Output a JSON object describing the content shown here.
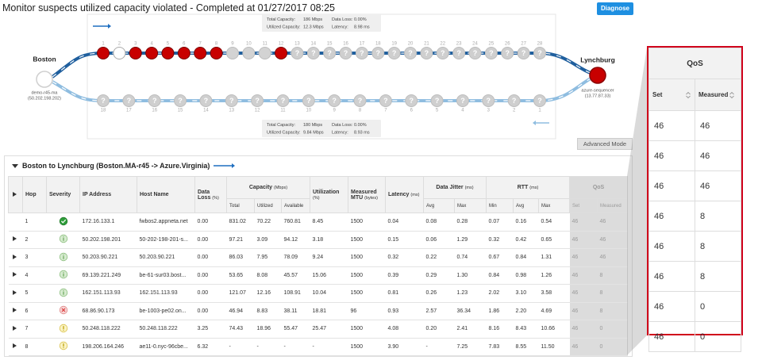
{
  "header": {
    "title": "Monitor suspects utilized capacity violated - Completed at 01/27/2017 08:25",
    "diagnose": "Diagnose"
  },
  "path": {
    "top_stats": [
      [
        "Total Capacity:",
        "186 Mbps"
      ],
      [
        "Data Loss:",
        "0.00%"
      ],
      [
        "Utilized Capacity:",
        "12.3 Mbps"
      ],
      [
        "Latency:",
        "8.98 ms"
      ]
    ],
    "bottom_stats": [
      [
        "Total Capacity:",
        "180 Mbps"
      ],
      [
        "Data Loss:",
        "0.00%"
      ],
      [
        "Utilized Capacity:",
        "9.84 Mbps"
      ],
      [
        "Latency:",
        "8.93 ms"
      ]
    ],
    "source": {
      "name": "Boston",
      "host": "demo-r45-ma",
      "ip": "(50.202.198.202)"
    },
    "target": {
      "name": "Lynchburg",
      "host": "azure-sequencer",
      "ip": "(13.77.87.33)"
    },
    "unknown_symbol": "?",
    "outbound_hops": [
      {
        "label": "1",
        "state": "violation"
      },
      {
        "label": "2",
        "state": "clear"
      },
      {
        "label": "3",
        "state": "violation"
      },
      {
        "label": "4",
        "state": "violation"
      },
      {
        "label": "5",
        "state": "violation"
      },
      {
        "label": "6",
        "state": "violation"
      },
      {
        "label": "7",
        "state": "violation"
      },
      {
        "label": "8",
        "state": "violation"
      },
      {
        "label": "9",
        "state": "traced"
      },
      {
        "label": "10",
        "state": "traced"
      },
      {
        "label": "11",
        "state": "traced"
      },
      {
        "label": "12",
        "state": "violation"
      },
      {
        "label": "13",
        "state": "unknown"
      },
      {
        "label": "14",
        "state": "unknown"
      },
      {
        "label": "15",
        "state": "unknown"
      },
      {
        "label": "16",
        "state": "unknown"
      },
      {
        "label": "17",
        "state": "unknown"
      },
      {
        "label": "18",
        "state": "unknown"
      },
      {
        "label": "19",
        "state": "unknown"
      },
      {
        "label": "20",
        "state": "unknown"
      },
      {
        "label": "21",
        "state": "unknown"
      },
      {
        "label": "22",
        "state": "unknown"
      },
      {
        "label": "23",
        "state": "unknown"
      },
      {
        "label": "24",
        "state": "unknown"
      },
      {
        "label": "25",
        "state": "unknown"
      },
      {
        "label": "26",
        "state": "unknown"
      },
      {
        "label": "27",
        "state": "unknown"
      },
      {
        "label": "28",
        "state": "unknown"
      }
    ],
    "inbound_hops": [
      {
        "label": "18",
        "state": "unknown"
      },
      {
        "label": "17",
        "state": "unknown"
      },
      {
        "label": "16",
        "state": "unknown"
      },
      {
        "label": "15",
        "state": "unknown"
      },
      {
        "label": "14",
        "state": "unknown"
      },
      {
        "label": "13",
        "state": "unknown"
      },
      {
        "label": "12",
        "state": "unknown"
      },
      {
        "label": "11",
        "state": "unknown"
      },
      {
        "label": "10",
        "state": "unknown"
      },
      {
        "label": "9",
        "state": "unknown"
      },
      {
        "label": "8",
        "state": "unknown"
      },
      {
        "label": "7",
        "state": "unknown"
      },
      {
        "label": "6",
        "state": "unknown"
      },
      {
        "label": "5",
        "state": "unknown"
      },
      {
        "label": "4",
        "state": "unknown"
      },
      {
        "label": "3",
        "state": "unknown"
      },
      {
        "label": "2",
        "state": "unknown"
      },
      {
        "label": "1",
        "state": "unknown"
      }
    ]
  },
  "advanced_mode": "Advanced Mode",
  "section": {
    "title": "Boston to Lynchburg (Boston.MA-r45 -> Azure.Virginia)"
  },
  "table": {
    "columns": [
      {
        "label": "Hop"
      },
      {
        "label": "Severity"
      },
      {
        "label": "IP Address"
      },
      {
        "label": "Host Name"
      },
      {
        "label": "Data Loss",
        "unit": "(%)"
      },
      {
        "label": "Capacity",
        "unit": "(Mbps)",
        "sub": [
          "Total",
          "Utilized",
          "Available"
        ]
      },
      {
        "label": "Utilization",
        "unit": "(%)"
      },
      {
        "label": "Measured MTU",
        "unit": "(bytes)"
      },
      {
        "label": "Latency",
        "unit": "(ms)"
      },
      {
        "label": "Data Jitter",
        "unit": "(ms)",
        "sub": [
          "Avg",
          "Max"
        ]
      },
      {
        "label": "RTT",
        "unit": "(ms)",
        "sub": [
          "Min",
          "Avg",
          "Max"
        ]
      },
      {
        "label": "QoS",
        "sub": [
          "Set",
          "Measured"
        ]
      }
    ],
    "rows": [
      {
        "expandable": false,
        "severity": "ok",
        "cells": [
          "1",
          "172.16.133.1",
          "fwbos2.appneta.net",
          "0.00",
          "831.02",
          "70.22",
          "760.81",
          "8.45",
          "1500",
          "0.04",
          "0.08",
          "0.28",
          "0.07",
          "0.16",
          "0.54",
          "46",
          "46"
        ]
      },
      {
        "expandable": true,
        "severity": "info",
        "cells": [
          "2",
          "50.202.198.201",
          "50-202-198-201-s...",
          "0.00",
          "97.21",
          "3.09",
          "94.12",
          "3.18",
          "1500",
          "0.15",
          "0.06",
          "1.29",
          "0.32",
          "0.42",
          "0.65",
          "46",
          "46"
        ]
      },
      {
        "expandable": true,
        "severity": "info",
        "cells": [
          "3",
          "50.203.90.221",
          "50.203.90.221",
          "0.00",
          "86.03",
          "7.95",
          "78.09",
          "9.24",
          "1500",
          "0.32",
          "0.22",
          "0.74",
          "0.67",
          "0.84",
          "1.31",
          "46",
          "46"
        ]
      },
      {
        "expandable": true,
        "severity": "info",
        "cells": [
          "4",
          "69.139.221.249",
          "be-61-sur03.bost...",
          "0.00",
          "53.65",
          "8.08",
          "45.57",
          "15.06",
          "1500",
          "0.39",
          "0.29",
          "1.30",
          "0.84",
          "0.98",
          "1.26",
          "46",
          "8"
        ]
      },
      {
        "expandable": true,
        "severity": "info",
        "cells": [
          "5",
          "162.151.113.93",
          "162.151.113.93",
          "0.00",
          "121.07",
          "12.16",
          "108.91",
          "10.04",
          "1500",
          "0.81",
          "0.26",
          "1.23",
          "2.02",
          "3.10",
          "3.58",
          "46",
          "8"
        ]
      },
      {
        "expandable": true,
        "severity": "error",
        "cells": [
          "6",
          "68.86.90.173",
          "be-1003-pe02.on...",
          "0.00",
          "46.94",
          "8.83",
          "38.11",
          "18.81",
          "96",
          "0.93",
          "2.57",
          "36.34",
          "1.86",
          "2.20",
          "4.69",
          "46",
          "8"
        ]
      },
      {
        "expandable": true,
        "severity": "warn",
        "cells": [
          "7",
          "50.248.118.222",
          "50.248.118.222",
          "3.25",
          "74.43",
          "18.96",
          "55.47",
          "25.47",
          "1500",
          "4.08",
          "0.20",
          "2.41",
          "8.16",
          "8.43",
          "10.66",
          "46",
          "0"
        ]
      },
      {
        "expandable": true,
        "severity": "warn",
        "cells": [
          "8",
          "198.206.164.246",
          "ae11-0.nyc-96cbe...",
          "6.32",
          "-",
          "-",
          "-",
          "-",
          "1500",
          "3.90",
          "-",
          "7.25",
          "7.83",
          "8.55",
          "11.50",
          "46",
          "0"
        ]
      }
    ]
  }
}
